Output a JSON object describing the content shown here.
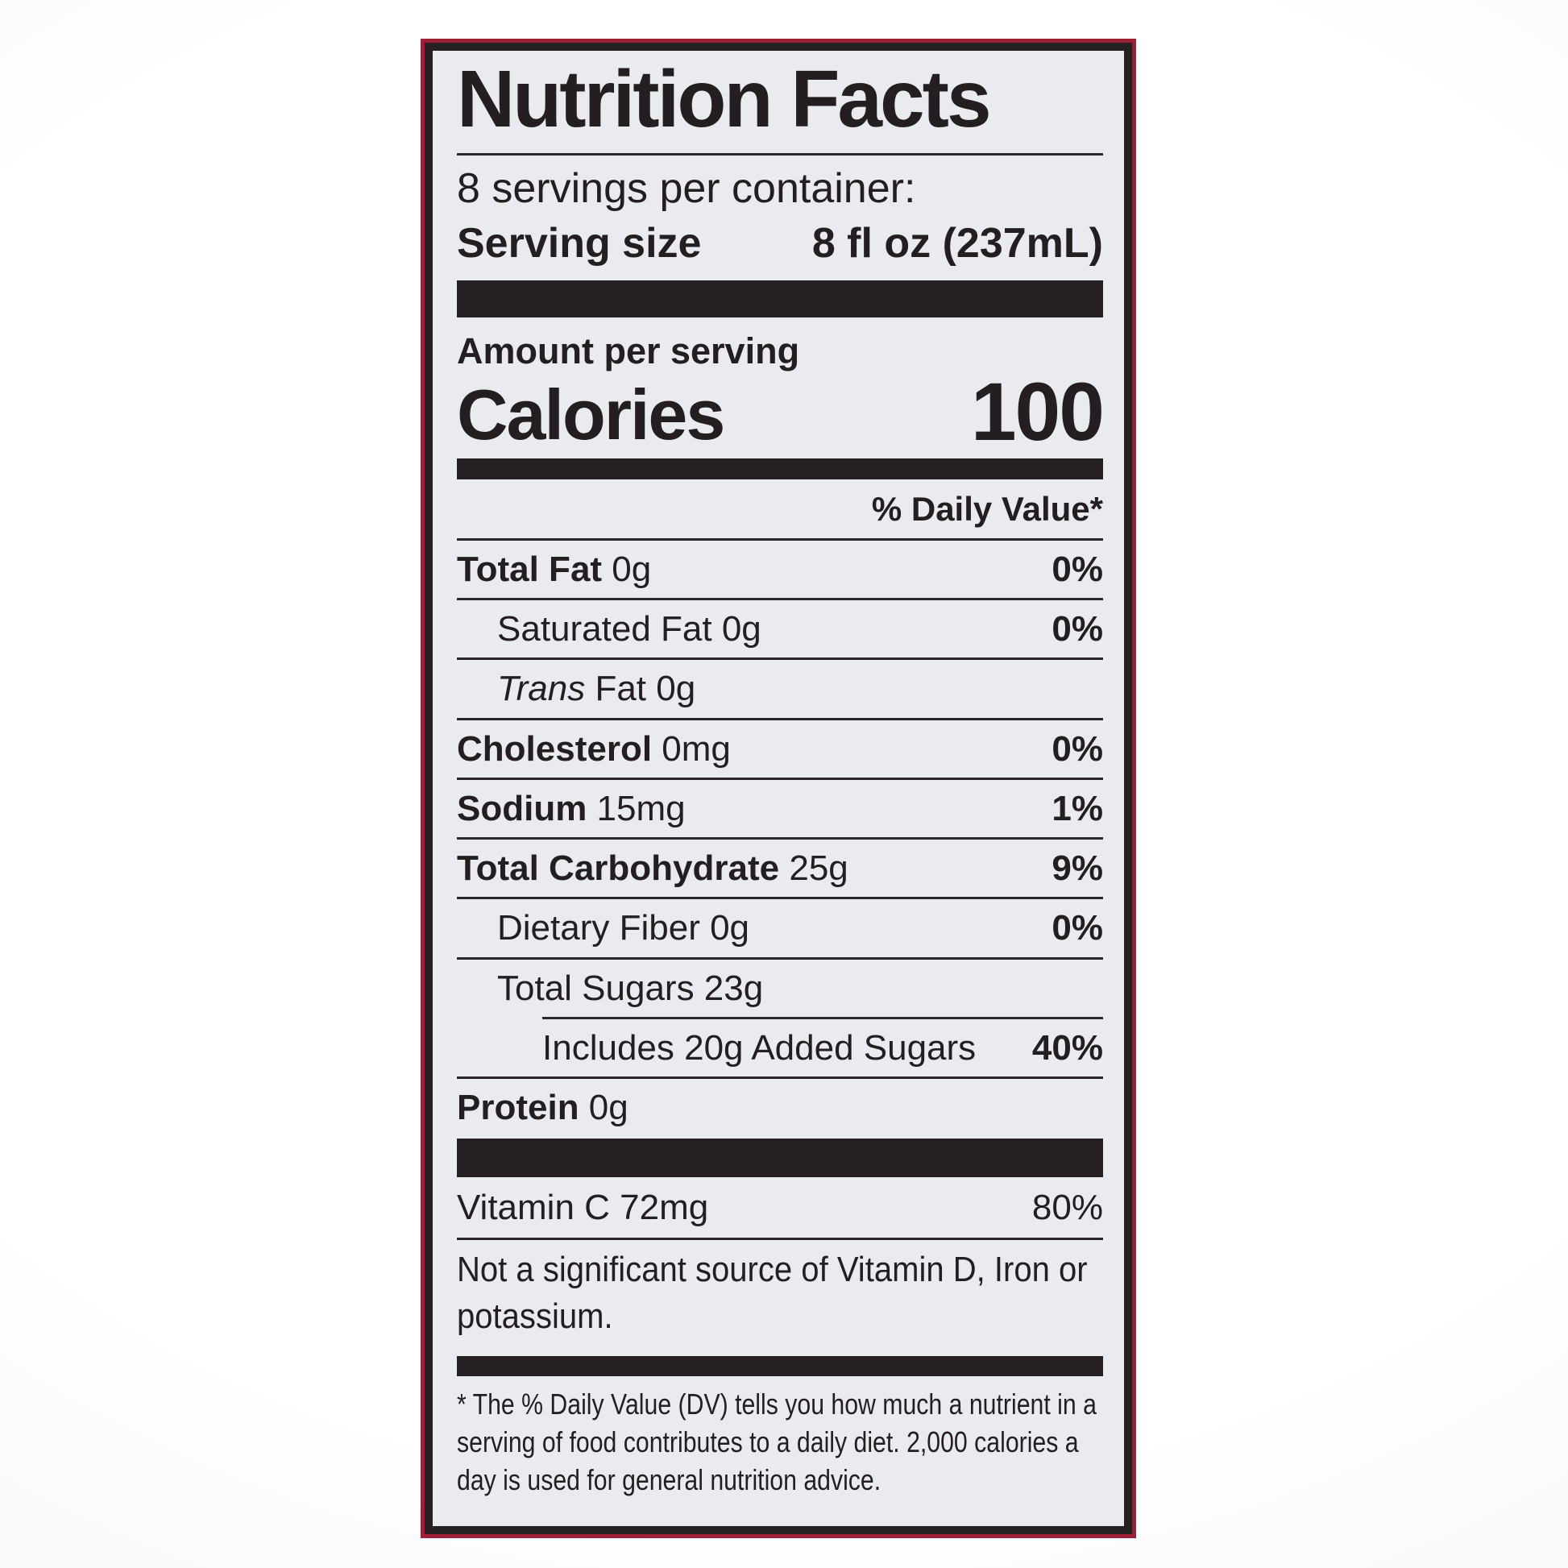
{
  "label": {
    "title": "Nutrition Facts",
    "servings_per_container": "8 servings per container:",
    "serving_size_label": "Serving size",
    "serving_size_value": "8 fl oz (237mL)",
    "amount_per_serving": "Amount per serving",
    "calories_label": "Calories",
    "calories_value": "100",
    "daily_value_header": "% Daily Value*",
    "rows": [
      {
        "name": "Total Fat",
        "bold": true,
        "amount": "0g",
        "dv": "0%",
        "indent": 0,
        "divider_indent": 0
      },
      {
        "name": "Saturated Fat",
        "bold": false,
        "amount": "0g",
        "dv": "0%",
        "indent": 1,
        "divider_indent": 0
      },
      {
        "italic_prefix": "Trans",
        "name": " Fat",
        "bold": false,
        "amount": "0g",
        "dv": "",
        "indent": 1,
        "divider_indent": 0
      },
      {
        "name": "Cholesterol",
        "bold": true,
        "amount": "0mg",
        "dv": "0%",
        "indent": 0,
        "divider_indent": 0
      },
      {
        "name": "Sodium",
        "bold": true,
        "amount": "15mg",
        "dv": "1%",
        "indent": 0,
        "divider_indent": 0
      },
      {
        "name": "Total Carbohydrate",
        "bold": true,
        "amount": "25g",
        "dv": "9%",
        "indent": 0,
        "divider_indent": 0
      },
      {
        "name": "Dietary Fiber",
        "bold": false,
        "amount": "0g",
        "dv": "0%",
        "indent": 1,
        "divider_indent": 0
      },
      {
        "name": "Total Sugars",
        "bold": false,
        "amount": "23g",
        "dv": "",
        "indent": 1,
        "divider_indent": 0
      },
      {
        "name": "Includes 20g Added Sugars",
        "bold": false,
        "amount": "",
        "dv": "40%",
        "indent": 2,
        "divider_indent": 106
      },
      {
        "name": "Protein",
        "bold": true,
        "amount": "0g",
        "dv": "",
        "indent": 0,
        "divider_indent": 0
      }
    ],
    "vitamin_row": {
      "name": "Vitamin C 72mg",
      "dv": "80%"
    },
    "not_significant": "Not a significant source of Vitamin D, Iron or potassium.",
    "footnote": "* The % Daily Value (DV) tells you how much a nutrient in a serving of food contributes to a daily diet. 2,000 calories a day is used for general nutrition advice."
  },
  "colors": {
    "border_red": "#9e2036",
    "ink": "#241e20",
    "bar_black": "#262022",
    "line": "#2c2628",
    "label_background": "#e9ebf1"
  }
}
